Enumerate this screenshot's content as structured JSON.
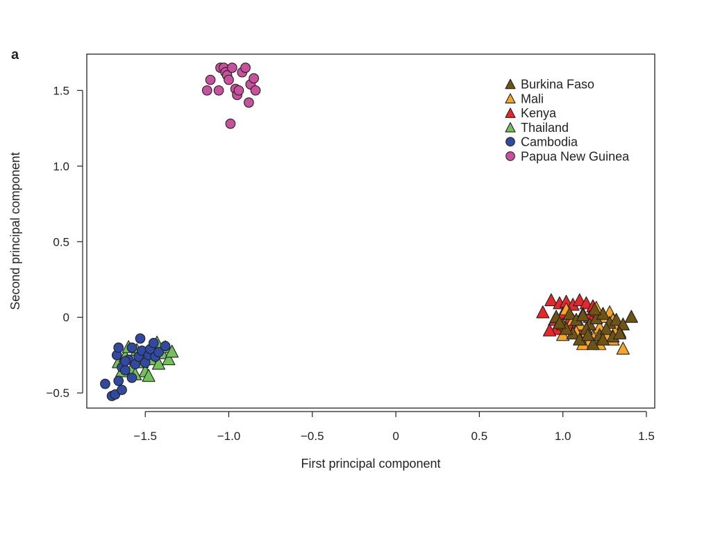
{
  "panel_label": "a",
  "chart_data": {
    "type": "scatter",
    "xlabel": "First principal component",
    "ylabel": "Second principal component",
    "xlim": [
      -1.85,
      1.55
    ],
    "ylim": [
      -0.6,
      1.74
    ],
    "xticks": [
      -1.5,
      -1.0,
      -0.5,
      0,
      0.5,
      1.0,
      1.5
    ],
    "xtick_labels": [
      "−1.5",
      "−1.0",
      "−0.5",
      "0",
      "0.5",
      "1.0",
      "1.5"
    ],
    "yticks": [
      -0.5,
      0,
      0.5,
      1.0,
      1.5
    ],
    "ytick_labels": [
      "−0.5",
      "0",
      "0.5",
      "1.0",
      "1.5"
    ],
    "grid": false,
    "legend_position": "top-right",
    "series": [
      {
        "name": "Kenya",
        "marker": "triangle",
        "color": "#e8262b",
        "points": [
          [
            0.88,
            0.03
          ],
          [
            0.93,
            0.11
          ],
          [
            0.98,
            0.09
          ],
          [
            1.02,
            0.1
          ],
          [
            1.06,
            0.08
          ],
          [
            1.1,
            0.11
          ],
          [
            1.14,
            0.09
          ],
          [
            1.18,
            0.07
          ],
          [
            0.95,
            -0.02
          ],
          [
            1.0,
            0.02
          ],
          [
            1.03,
            -0.04
          ],
          [
            0.96,
            -0.08
          ],
          [
            1.12,
            0.02
          ],
          [
            1.08,
            -0.06
          ],
          [
            1.16,
            0.0
          ],
          [
            1.2,
            0.04
          ],
          [
            0.92,
            -0.09
          ]
        ]
      },
      {
        "name": "Mali",
        "marker": "triangle",
        "color": "#f5a623",
        "points": [
          [
            1.02,
            0.05
          ],
          [
            1.06,
            -0.02
          ],
          [
            1.1,
            -0.05
          ],
          [
            1.14,
            -0.1
          ],
          [
            1.18,
            -0.13
          ],
          [
            1.22,
            -0.07
          ],
          [
            1.26,
            -0.12
          ],
          [
            1.3,
            -0.15
          ],
          [
            1.34,
            -0.1
          ],
          [
            1.36,
            -0.21
          ],
          [
            1.2,
            0.06
          ],
          [
            1.24,
            0.0
          ],
          [
            1.28,
            0.03
          ],
          [
            1.16,
            -0.16
          ],
          [
            1.12,
            -0.18
          ],
          [
            1.08,
            -0.1
          ],
          [
            1.3,
            -0.02
          ],
          [
            1.0,
            -0.12
          ],
          [
            1.22,
            -0.18
          ],
          [
            1.32,
            -0.08
          ]
        ]
      },
      {
        "name": "Burkina Faso",
        "marker": "triangle",
        "color": "#6e5414",
        "points": [
          [
            0.96,
            0.0
          ],
          [
            1.0,
            -0.05
          ],
          [
            1.04,
            0.02
          ],
          [
            1.08,
            -0.02
          ],
          [
            1.12,
            0.01
          ],
          [
            1.16,
            -0.05
          ],
          [
            1.2,
            -0.01
          ],
          [
            1.24,
            0.02
          ],
          [
            1.28,
            -0.04
          ],
          [
            1.32,
            -0.02
          ],
          [
            1.36,
            -0.05
          ],
          [
            1.41,
            0.0
          ],
          [
            1.06,
            -0.11
          ],
          [
            1.1,
            -0.15
          ],
          [
            1.14,
            -0.08
          ],
          [
            1.18,
            -0.18
          ],
          [
            1.22,
            -0.12
          ],
          [
            1.26,
            -0.08
          ],
          [
            1.3,
            -0.13
          ],
          [
            1.02,
            -0.08
          ],
          [
            0.98,
            -0.04
          ],
          [
            1.15,
            -0.12
          ],
          [
            1.24,
            -0.15
          ],
          [
            1.34,
            -0.11
          ],
          [
            1.19,
            0.05
          ]
        ]
      },
      {
        "name": "Thailand",
        "marker": "triangle",
        "color": "#72c15a",
        "points": [
          [
            -1.66,
            -0.3
          ],
          [
            -1.62,
            -0.26
          ],
          [
            -1.58,
            -0.34
          ],
          [
            -1.55,
            -0.22
          ],
          [
            -1.52,
            -0.3
          ],
          [
            -1.5,
            -0.36
          ],
          [
            -1.47,
            -0.28
          ],
          [
            -1.45,
            -0.22
          ],
          [
            -1.43,
            -0.17
          ],
          [
            -1.4,
            -0.24
          ],
          [
            -1.38,
            -0.2
          ],
          [
            -1.36,
            -0.28
          ],
          [
            -1.34,
            -0.23
          ],
          [
            -1.48,
            -0.39
          ],
          [
            -1.53,
            -0.25
          ],
          [
            -1.6,
            -0.2
          ],
          [
            -1.64,
            -0.36
          ],
          [
            -1.42,
            -0.31
          ],
          [
            -1.56,
            -0.38
          ]
        ]
      },
      {
        "name": "Cambodia",
        "marker": "circle",
        "color": "#2f4aa0",
        "points": [
          [
            -1.74,
            -0.44
          ],
          [
            -1.7,
            -0.52
          ],
          [
            -1.68,
            -0.51
          ],
          [
            -1.66,
            -0.42
          ],
          [
            -1.64,
            -0.48
          ],
          [
            -1.67,
            -0.25
          ],
          [
            -1.66,
            -0.2
          ],
          [
            -1.64,
            -0.33
          ],
          [
            -1.62,
            -0.35
          ],
          [
            -1.6,
            -0.28
          ],
          [
            -1.58,
            -0.4
          ],
          [
            -1.58,
            -0.2
          ],
          [
            -1.56,
            -0.31
          ],
          [
            -1.54,
            -0.26
          ],
          [
            -1.53,
            -0.14
          ],
          [
            -1.52,
            -0.22
          ],
          [
            -1.5,
            -0.3
          ],
          [
            -1.48,
            -0.25
          ],
          [
            -1.47,
            -0.21
          ],
          [
            -1.45,
            -0.17
          ],
          [
            -1.44,
            -0.26
          ],
          [
            -1.42,
            -0.23
          ],
          [
            -1.38,
            -0.19
          ],
          [
            -1.62,
            -0.29
          ]
        ]
      },
      {
        "name": "Papua New Guinea",
        "marker": "circle",
        "color": "#c7519d",
        "points": [
          [
            -1.13,
            1.5
          ],
          [
            -1.11,
            1.57
          ],
          [
            -1.06,
            1.5
          ],
          [
            -1.05,
            1.65
          ],
          [
            -1.03,
            1.65
          ],
          [
            -1.02,
            1.62
          ],
          [
            -1.01,
            1.6
          ],
          [
            -1.0,
            1.57
          ],
          [
            -0.98,
            1.65
          ],
          [
            -0.96,
            1.51
          ],
          [
            -0.95,
            1.47
          ],
          [
            -0.94,
            1.5
          ],
          [
            -0.92,
            1.62
          ],
          [
            -0.9,
            1.65
          ],
          [
            -0.88,
            1.42
          ],
          [
            -0.87,
            1.54
          ],
          [
            -0.85,
            1.58
          ],
          [
            -0.84,
            1.5
          ],
          [
            -0.99,
            1.28
          ]
        ]
      }
    ],
    "legend_order": [
      "Burkina Faso",
      "Mali",
      "Kenya",
      "Thailand",
      "Cambodia",
      "Papua New Guinea"
    ]
  }
}
